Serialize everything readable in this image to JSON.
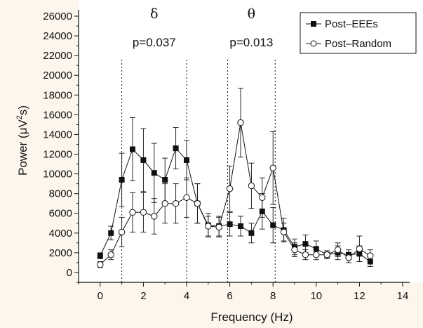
{
  "chart_data": {
    "type": "line",
    "xlabel": "Frequency (Hz)",
    "ylabel_parts": {
      "main": "Power (μV",
      "sup": "2",
      "tail": "s)"
    },
    "xlim": [
      -1,
      14
    ],
    "ylim": [
      -1000,
      26000
    ],
    "x_ticks": [
      0,
      2,
      4,
      6,
      8,
      10,
      12,
      14
    ],
    "y_ticks": [
      0,
      2000,
      4000,
      6000,
      8000,
      10000,
      12000,
      14000,
      16000,
      18000,
      20000,
      22000,
      24000,
      26000
    ],
    "x": [
      0,
      0.5,
      1,
      1.5,
      2,
      2.5,
      3,
      3.5,
      4,
      4.5,
      5,
      5.5,
      6,
      6.5,
      7,
      7.5,
      8,
      8.5,
      9,
      9.5,
      10,
      10.5,
      11,
      11.5,
      12,
      12.5
    ],
    "series": [
      {
        "name": "Post–EEEs",
        "marker": "filled-square",
        "values": [
          1700,
          4000,
          9400,
          12500,
          11400,
          10100,
          9400,
          12600,
          11400,
          7000,
          4800,
          4700,
          4900,
          4700,
          4000,
          6200,
          4800,
          4300,
          2600,
          2900,
          2400,
          1800,
          2000,
          1800,
          1900,
          1100
        ],
        "errors": [
          300,
          700,
          2700,
          3200,
          3200,
          3000,
          2200,
          2100,
          2000,
          2000,
          1200,
          1000,
          1200,
          1000,
          1000,
          1800,
          1800,
          1200,
          800,
          900,
          800,
          400,
          700,
          500,
          800,
          500
        ]
      },
      {
        "name": "Post–Random",
        "marker": "open-circle",
        "values": [
          800,
          1800,
          4100,
          6100,
          6100,
          5700,
          7000,
          7000,
          7600,
          7000,
          4700,
          4600,
          8500,
          15200,
          8800,
          7600,
          10600,
          4100,
          2300,
          1800,
          1800,
          1800,
          2300,
          1500,
          2400,
          1700
        ],
        "errors": [
          300,
          500,
          1500,
          2000,
          2000,
          1800,
          2000,
          2000,
          2000,
          2000,
          1000,
          1000,
          2300,
          3500,
          2300,
          2000,
          3700,
          900,
          700,
          500,
          500,
          400,
          700,
          500,
          1300,
          600
        ]
      }
    ],
    "bands": [
      {
        "symbol": "δ",
        "p_label": "p=0.037",
        "x_start": 1,
        "x_end": 4
      },
      {
        "symbol": "θ",
        "p_label": "p=0.013",
        "x_start": 5.9,
        "x_end": 8.1
      }
    ],
    "legend_position": "top-right",
    "grid": false
  },
  "style": {
    "background": "#fdf6ec",
    "plot_background": "#ffffff",
    "ink": "#111111"
  }
}
